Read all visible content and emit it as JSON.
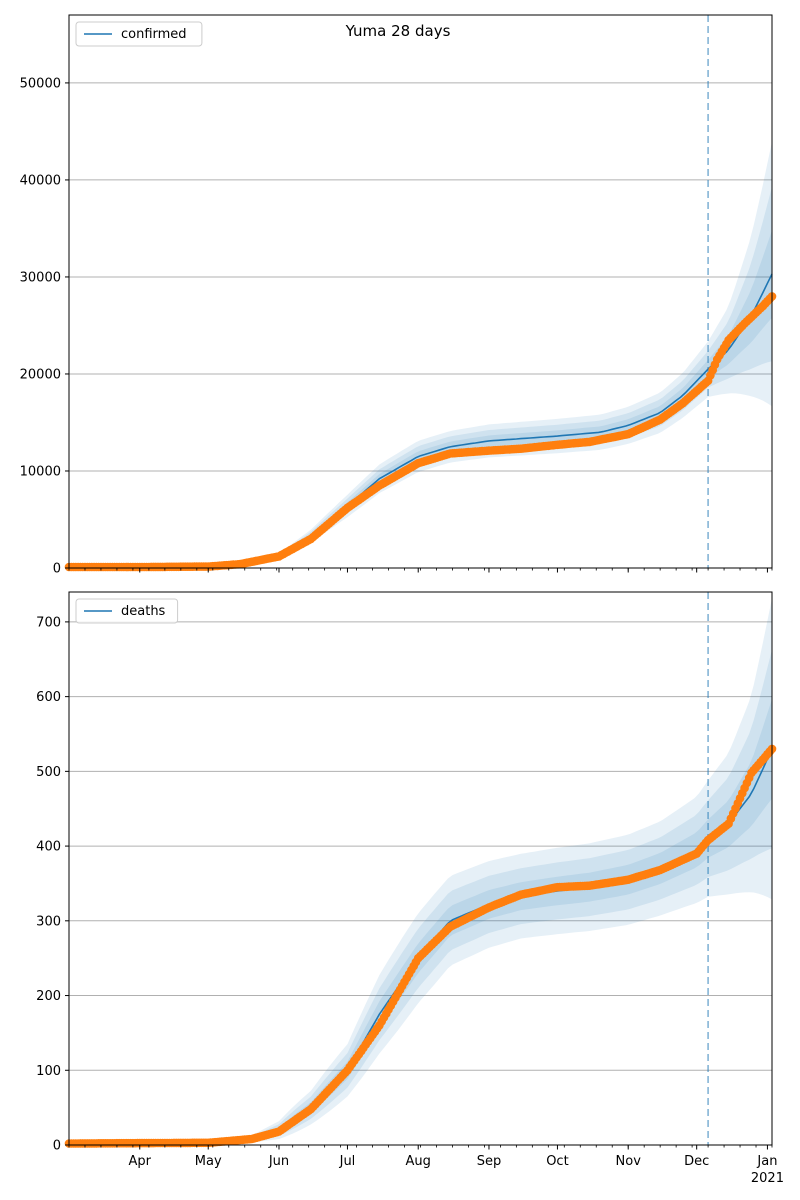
{
  "title": "Yuma 28 days",
  "colors": {
    "model_line": "#1f77b4",
    "observed_points": "#ff7f0e",
    "band": "#1f77b4",
    "vline": "#1f77b4",
    "grid": "#b0b0b0"
  },
  "x_axis": {
    "months": [
      {
        "label": "Apr",
        "date": "2020-04-01"
      },
      {
        "label": "May",
        "date": "2020-05-01"
      },
      {
        "label": "Jun",
        "date": "2020-06-01"
      },
      {
        "label": "Jul",
        "date": "2020-07-01"
      },
      {
        "label": "Aug",
        "date": "2020-08-01"
      },
      {
        "label": "Sep",
        "date": "2020-09-01"
      },
      {
        "label": "Oct",
        "date": "2020-10-01"
      },
      {
        "label": "Nov",
        "date": "2020-11-01"
      },
      {
        "label": "Dec",
        "date": "2020-12-01"
      },
      {
        "label": "Jan",
        "date": "2021-01-01"
      }
    ],
    "year_label": "2021",
    "range": [
      "2020-03-01",
      "2021-01-03"
    ]
  },
  "chart_data": [
    {
      "type": "line",
      "legend": "confirmed",
      "legend_position": "upper-left",
      "grid": "horizontal",
      "ylim": [
        0,
        57000
      ],
      "yticks": [
        0,
        10000,
        20000,
        30000,
        40000,
        50000
      ],
      "forecast_start": "2020-12-06",
      "model": {
        "x": [
          "2020-03-01",
          "2020-05-01",
          "2020-05-20",
          "2020-06-01",
          "2020-06-15",
          "2020-07-01",
          "2020-07-15",
          "2020-08-01",
          "2020-08-15",
          "2020-09-01",
          "2020-10-01",
          "2020-10-20",
          "2020-11-01",
          "2020-11-15",
          "2020-11-25",
          "2020-12-06",
          "2020-12-15",
          "2020-12-25",
          "2021-01-03"
        ],
        "y": [
          100,
          150,
          400,
          1200,
          3300,
          6400,
          9200,
          11500,
          12500,
          13100,
          13600,
          14000,
          14700,
          16000,
          17800,
          20500,
          22500,
          26000,
          30300
        ],
        "band_half_width": [
          0.02,
          0.1,
          0.18,
          0.22,
          0.2,
          0.18,
          0.16,
          0.14,
          0.13,
          0.13,
          0.13,
          0.13,
          0.13,
          0.13,
          0.13,
          0.14,
          0.2,
          0.32,
          0.45
        ]
      },
      "observed": {
        "x": [
          "2020-03-01",
          "2020-04-01",
          "2020-05-01",
          "2020-05-15",
          "2020-06-01",
          "2020-06-15",
          "2020-07-01",
          "2020-07-15",
          "2020-08-01",
          "2020-08-15",
          "2020-09-01",
          "2020-09-15",
          "2020-10-01",
          "2020-10-15",
          "2020-11-01",
          "2020-11-15",
          "2020-11-25",
          "2020-12-06",
          "2020-12-10",
          "2020-12-15",
          "2020-12-22",
          "2020-12-30",
          "2021-01-03"
        ],
        "y": [
          100,
          100,
          150,
          400,
          1200,
          3000,
          6200,
          8500,
          10800,
          11800,
          12100,
          12300,
          12700,
          13000,
          13800,
          15300,
          17000,
          19300,
          21500,
          23500,
          25200,
          27000,
          28000
        ]
      }
    },
    {
      "type": "line",
      "legend": "deaths",
      "legend_position": "upper-left",
      "grid": "horizontal",
      "ylim": [
        0,
        740
      ],
      "yticks": [
        0,
        100,
        200,
        300,
        400,
        500,
        600,
        700
      ],
      "forecast_start": "2020-12-06",
      "model": {
        "x": [
          "2020-03-01",
          "2020-05-01",
          "2020-05-20",
          "2020-06-01",
          "2020-06-15",
          "2020-07-01",
          "2020-07-15",
          "2020-08-01",
          "2020-08-15",
          "2020-09-01",
          "2020-09-15",
          "2020-10-01",
          "2020-10-15",
          "2020-11-01",
          "2020-11-15",
          "2020-12-01",
          "2020-12-06",
          "2020-12-15",
          "2020-12-25",
          "2021-01-03"
        ],
        "y": [
          2,
          3,
          8,
          20,
          50,
          100,
          175,
          250,
          300,
          322,
          333,
          340,
          345,
          355,
          370,
          395,
          410,
          430,
          470,
          530
        ],
        "band_half_width": [
          0.2,
          0.5,
          0.6,
          0.6,
          0.45,
          0.35,
          0.3,
          0.24,
          0.2,
          0.18,
          0.17,
          0.17,
          0.17,
          0.17,
          0.17,
          0.18,
          0.19,
          0.22,
          0.28,
          0.38
        ]
      },
      "observed": {
        "x": [
          "2020-03-01",
          "2020-05-01",
          "2020-05-20",
          "2020-06-01",
          "2020-06-15",
          "2020-07-01",
          "2020-07-15",
          "2020-08-01",
          "2020-08-15",
          "2020-09-01",
          "2020-09-15",
          "2020-10-01",
          "2020-10-15",
          "2020-11-01",
          "2020-11-15",
          "2020-12-01",
          "2020-12-06",
          "2020-12-15",
          "2020-12-25",
          "2021-01-03"
        ],
        "y": [
          2,
          3,
          8,
          18,
          48,
          100,
          160,
          250,
          292,
          318,
          335,
          345,
          347,
          355,
          368,
          390,
          408,
          430,
          498,
          530
        ]
      }
    }
  ]
}
